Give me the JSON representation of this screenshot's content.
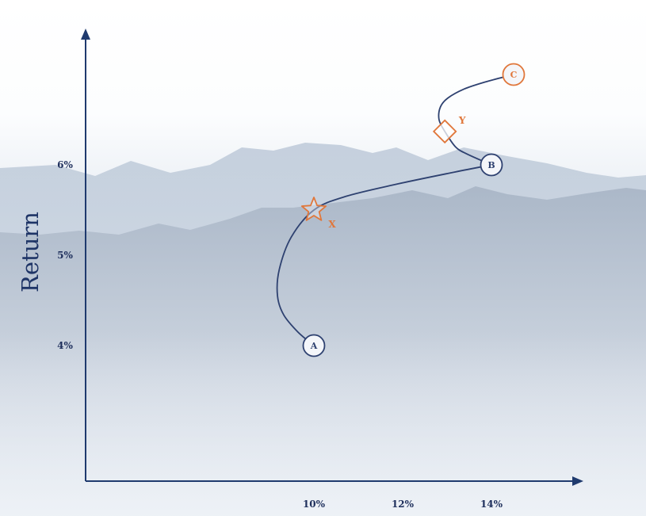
{
  "chart_data": {
    "type": "line",
    "ylabel": "Return",
    "xlabel": "",
    "x_ticks": [
      {
        "value": 10,
        "label": "10%"
      },
      {
        "value": 12,
        "label": "12%"
      },
      {
        "value": 14,
        "label": "14%"
      }
    ],
    "y_ticks": [
      {
        "value": 4,
        "label": "4%"
      },
      {
        "value": 5,
        "label": "5%"
      },
      {
        "value": 6,
        "label": "6%"
      }
    ],
    "points": [
      {
        "label": "A",
        "x": 10.0,
        "y": 4.0,
        "color": "#2e4170"
      },
      {
        "label": "B",
        "x": 14.0,
        "y": 6.0,
        "color": "#2e4170"
      },
      {
        "label": "C",
        "x": 14.5,
        "y": 7.0,
        "color": "#e0773b"
      }
    ],
    "markers": [
      {
        "label": "X",
        "shape": "star",
        "x": 10.0,
        "y": 5.5,
        "color": "#e0773b"
      },
      {
        "label": "Y",
        "shape": "diamond",
        "x": 12.95,
        "y": 6.37,
        "color": "#e0773b"
      }
    ],
    "series": [
      {
        "color": "#2e4170",
        "x": [
          10.0,
          9.64,
          9.32,
          9.18,
          9.22,
          9.49,
          10.0,
          10.71,
          11.9,
          13.17,
          14.0
        ],
        "y": [
          4.0,
          4.15,
          4.34,
          4.55,
          4.84,
          5.2,
          5.5,
          5.65,
          5.79,
          5.92,
          6.0
        ]
      },
      {
        "color": "#2e4170",
        "x": [
          14.0,
          13.45,
          13.19,
          12.95,
          12.82,
          12.85,
          13.02,
          13.39,
          13.88,
          14.5
        ],
        "y": [
          6.0,
          6.12,
          6.2,
          6.37,
          6.5,
          6.64,
          6.74,
          6.84,
          6.92,
          7.0
        ]
      }
    ],
    "colors": {
      "axis": "#1f3a6e",
      "curve": "#2e4170",
      "accent": "#e0773b"
    },
    "grid": false,
    "legend": "none"
  }
}
